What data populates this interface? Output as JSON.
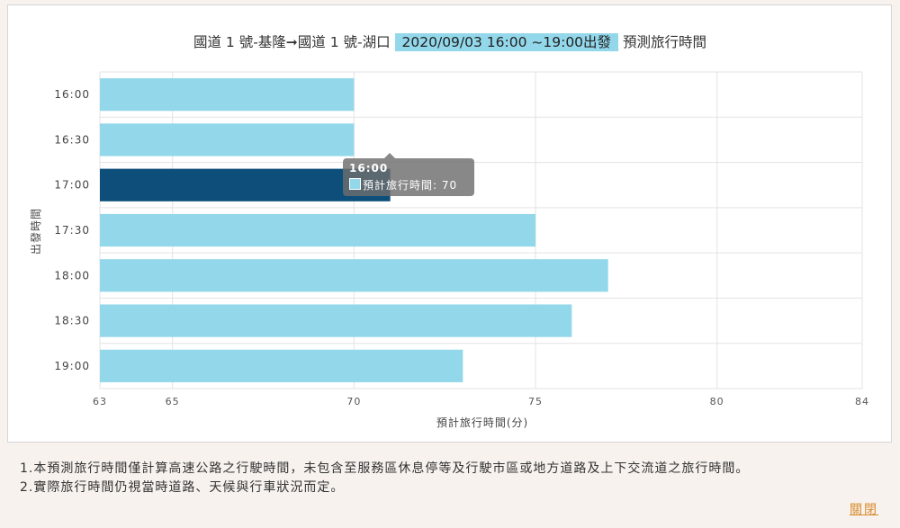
{
  "header": {
    "route": "國道 1 號-基隆➞國道 1 號-湖口",
    "range": "2020/09/03 16:00 ~19:00出發",
    "suffix": "預測旅行時間"
  },
  "chart_data": {
    "type": "bar",
    "orientation": "horizontal",
    "categories": [
      "16:00",
      "16:30",
      "17:00",
      "17:30",
      "18:00",
      "18:30",
      "19:00"
    ],
    "series": [
      {
        "name": "預計旅行時間",
        "values": [
          70,
          70,
          71,
          75,
          77,
          76,
          73
        ]
      }
    ],
    "xlabel": "預計旅行時間(分)",
    "ylabel": "出發時間",
    "x_ticks": [
      63,
      65,
      70,
      75,
      80,
      84
    ],
    "xlim": [
      63,
      84
    ],
    "grid": true,
    "highlight_index": 2,
    "colors": {
      "bar": "#92d7ea",
      "highlight": "#0d4f7a",
      "grid": "#e3e3e3"
    }
  },
  "tooltip": {
    "title": "16:00",
    "label": "預計旅行時間: 70"
  },
  "notes": [
    "1.本預測旅行時間僅計算高速公路之行駛時間，未包含至服務區休息停等及行駛市區或地方道路及上下交流道之旅行時間。",
    "2.實際旅行時間仍視當時道路、天候與行車狀況而定。"
  ],
  "close_label": "關閉"
}
